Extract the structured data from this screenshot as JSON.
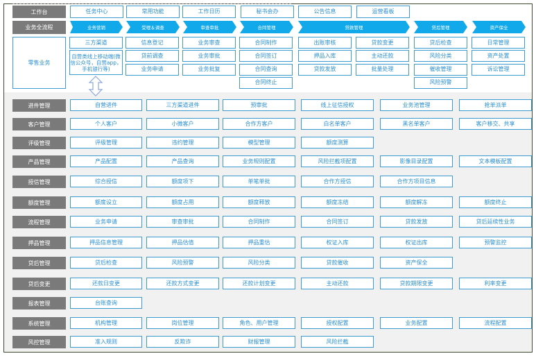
{
  "top": {
    "workbench_label": "工作台",
    "workbench_items": [
      "任务中心",
      "常用功能",
      "工作日历",
      "秘书会办",
      "公告信息",
      "运营看板"
    ],
    "process_label": "业务全流程",
    "process_stages": [
      "业务营销",
      "受理＆调查",
      "审查审批",
      "合同管理",
      "贷款管理",
      "贷后管理",
      "资产保全"
    ],
    "retail_label": "零售业务",
    "retail_columns": [
      [
        "三方渠道",
        "自营类线上移动端(微信公众号，自营app，手机银行等)"
      ],
      [
        "信息登记",
        "贷前调查",
        "业务申请"
      ],
      [
        "业务审查",
        "业务审批",
        "业务批复"
      ],
      [
        "合同制作",
        "合同签订",
        "合同查询",
        "合同终止"
      ],
      [
        "出账审核",
        "押品入库",
        "贷款发放"
      ],
      [
        "贷款变更",
        "主动还款",
        "批量处理"
      ],
      [
        "贷后检查",
        "风险分类",
        "催收管理",
        "风险预警"
      ],
      [
        "日常管理",
        "资产处置",
        "诉讼管理"
      ]
    ]
  },
  "modules": [
    {
      "label": "进件管理",
      "items": [
        "自营进件",
        "三方渠道进件",
        "预审批",
        "线上征信授权",
        "业务池管理",
        "抢单派单"
      ]
    },
    {
      "label": "客户管理",
      "items": [
        "个人客户",
        "小微客户",
        "合作方客户",
        "白名单客户",
        "黑名单客户",
        "客户移交、共享"
      ]
    },
    {
      "label": "评级管理",
      "items": [
        "评级管理",
        "违约管理",
        "模型管理",
        "额度测算"
      ]
    },
    {
      "label": "产品管理",
      "items": [
        "产品配置",
        "产品查询",
        "业务规则配置",
        "风险拦截项配置",
        "影像目录配置",
        "文本模板配置"
      ]
    },
    {
      "label": "授信管理",
      "items": [
        "综合授信",
        "额度项下",
        "单笔单批",
        "合作方授信",
        "合作方项目信息"
      ]
    },
    {
      "label": "额度管理",
      "items": [
        "额度设立",
        "额度占用",
        "额度释放",
        "额度冻结",
        "额度解冻",
        "额度终止"
      ]
    },
    {
      "label": "流程管理",
      "items": [
        "业务申请",
        "审查审批",
        "合同制作",
        "合同签订",
        "贷款发放",
        "贷后延续性业务"
      ]
    },
    {
      "label": "押品管理",
      "items": [
        "押品信息管理",
        "押品估值",
        "押品重估",
        "权证入库",
        "权证出库",
        "预警监控"
      ]
    },
    {
      "label": "贷后管理",
      "items": [
        "贷后检查",
        "风险预警",
        "风险分类",
        "贷款催收",
        "资产保全"
      ]
    },
    {
      "label": "贷后变更",
      "items": [
        "还款日变更",
        "还款方式变更",
        "还款计划变更",
        "主动还款",
        "贷款期限变更",
        "利率变更"
      ]
    },
    {
      "label": "报表管理",
      "items": [
        "台账查询"
      ]
    },
    {
      "label": "系统管理",
      "items": [
        "机构管理",
        "岗位管理",
        "角色、用户管理",
        "授权配置",
        "业务配置",
        "流程配置"
      ]
    },
    {
      "label": "风控管理",
      "items": [
        "准入规则",
        "反欺诈",
        "财报管理",
        "风险拦截"
      ]
    }
  ],
  "colors": {
    "accent": "#12a9ea",
    "box_border": "#3b9bd0",
    "label_bg": "#7a7a7a",
    "lower_bg": "#f1f1f1"
  }
}
